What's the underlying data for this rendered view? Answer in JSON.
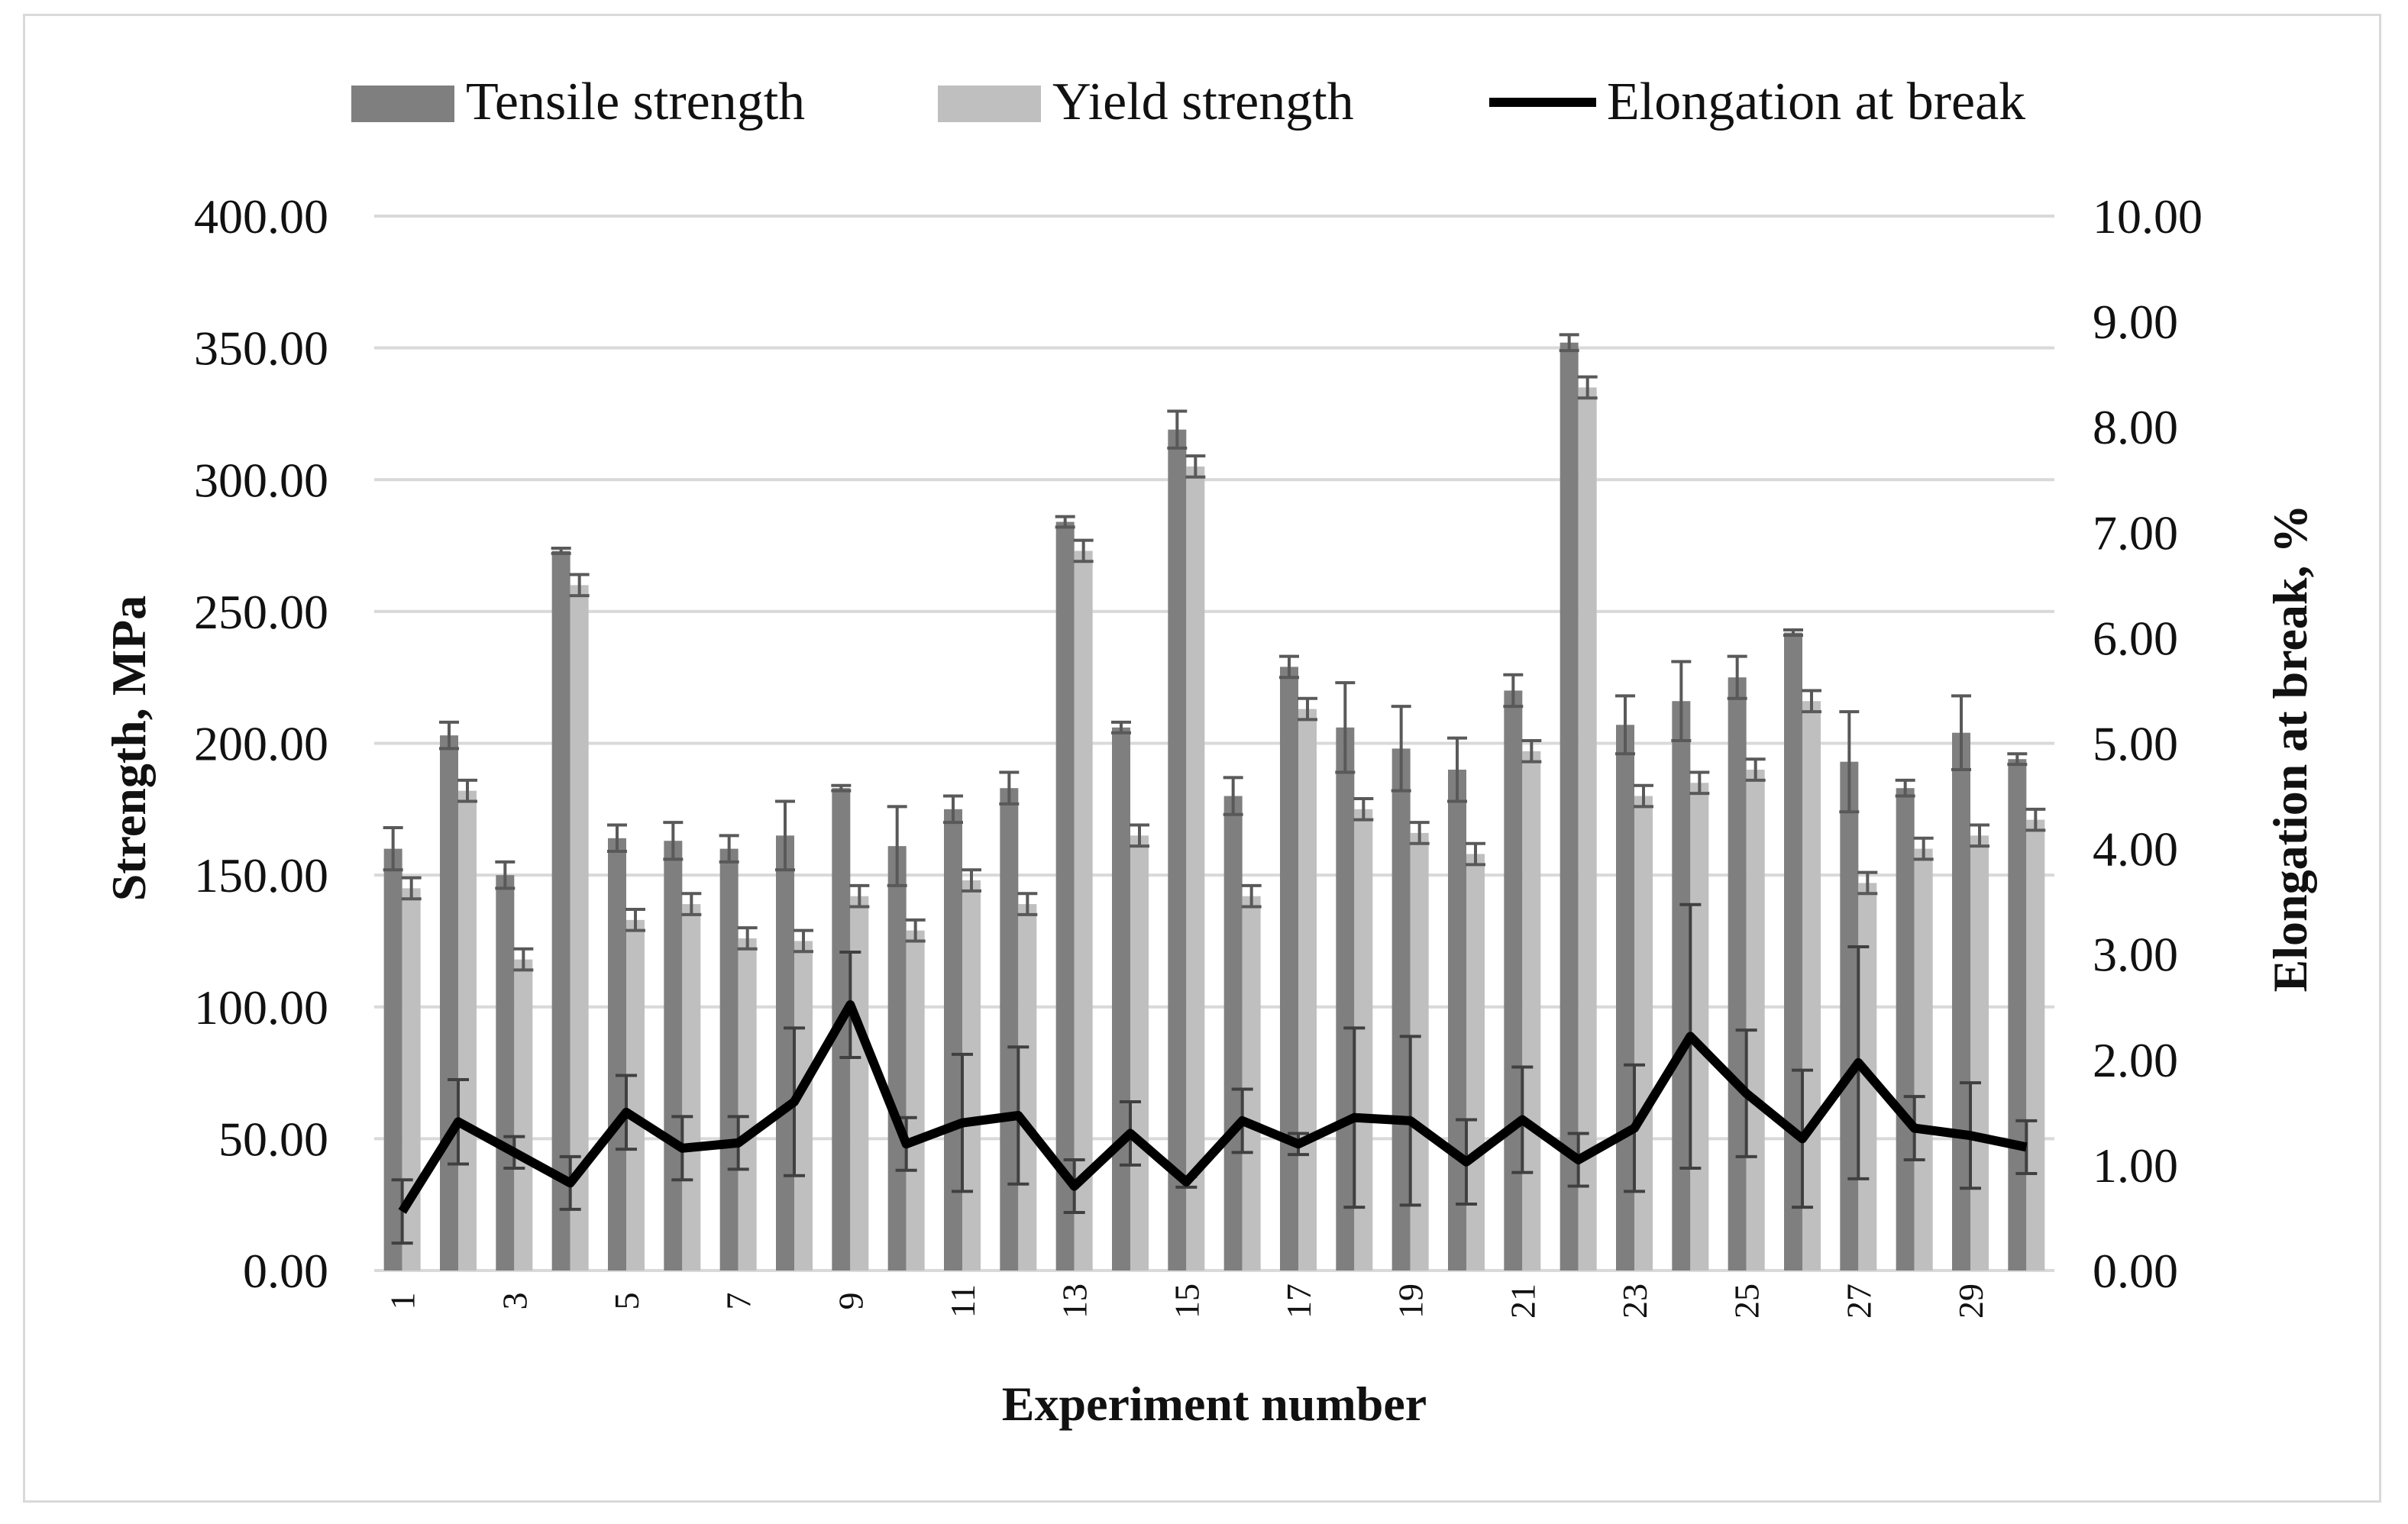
{
  "chart_data": {
    "type": "bar",
    "xlabel": "Experiment number",
    "ylabel": "Strength, MPa",
    "y2label": "Elongation at break, %",
    "ylim": [
      0,
      400
    ],
    "y2lim": [
      0,
      10
    ],
    "yticks": [
      "0.00",
      "50.00",
      "100.00",
      "150.00",
      "200.00",
      "250.00",
      "300.00",
      "350.00",
      "400.00"
    ],
    "y2ticks": [
      "0.00",
      "1.00",
      "2.00",
      "3.00",
      "4.00",
      "5.00",
      "6.00",
      "7.00",
      "8.00",
      "9.00",
      "10.00"
    ],
    "xtick_labels": [
      "1",
      "3",
      "5",
      "7",
      "9",
      "11",
      "13",
      "15",
      "17",
      "19",
      "21",
      "23",
      "25",
      "27",
      "29"
    ],
    "categories": [
      1,
      2,
      3,
      4,
      5,
      6,
      7,
      8,
      9,
      10,
      11,
      12,
      13,
      14,
      15,
      16,
      17,
      18,
      19,
      20,
      21,
      22,
      23,
      24,
      25,
      26,
      27,
      28,
      29,
      30
    ],
    "grid": true,
    "legend_position": "top",
    "series": [
      {
        "name": "Tensile strength",
        "kind": "bar",
        "axis": "left",
        "color": "#7f7f7f",
        "values": [
          160,
          203,
          150,
          273,
          164,
          163,
          160,
          165,
          183,
          161,
          175,
          183,
          284,
          206,
          319,
          180,
          229,
          206,
          198,
          190,
          220,
          352,
          207,
          216,
          225,
          242,
          193,
          183,
          204,
          194
        ],
        "errors": [
          8,
          5,
          5,
          1,
          5,
          7,
          5,
          13,
          1,
          15,
          5,
          6,
          2,
          2,
          7,
          7,
          4,
          17,
          16,
          12,
          6,
          3,
          11,
          15,
          8,
          1,
          19,
          3,
          14,
          2
        ]
      },
      {
        "name": "Yield strength",
        "kind": "bar",
        "axis": "left",
        "color": "#bfbfbf",
        "values": [
          145,
          182,
          118,
          260,
          133,
          139,
          126,
          125,
          142,
          129,
          148,
          139,
          273,
          165,
          305,
          142,
          213,
          175,
          166,
          158,
          197,
          335,
          180,
          185,
          190,
          216,
          147,
          160,
          165,
          171
        ]
      },
      {
        "name": "Elongation at break",
        "kind": "line",
        "axis": "right",
        "color": "#000000",
        "values": [
          0.56,
          1.41,
          1.12,
          0.83,
          1.5,
          1.16,
          1.21,
          1.6,
          2.52,
          1.2,
          1.4,
          1.47,
          0.8,
          1.3,
          0.84,
          1.42,
          1.2,
          1.45,
          1.42,
          1.03,
          1.43,
          1.05,
          1.35,
          2.22,
          1.68,
          1.25,
          1.97,
          1.35,
          1.28,
          1.17
        ],
        "errors": [
          0.3,
          0.4,
          0.15,
          0.25,
          0.35,
          0.3,
          0.25,
          0.7,
          0.5,
          0.25,
          0.65,
          0.65,
          0.25,
          0.3,
          0.05,
          0.3,
          0.1,
          0.85,
          0.8,
          0.4,
          0.5,
          0.25,
          0.6,
          1.25,
          0.6,
          0.65,
          1.1,
          0.3,
          0.5,
          0.25
        ]
      }
    ]
  }
}
